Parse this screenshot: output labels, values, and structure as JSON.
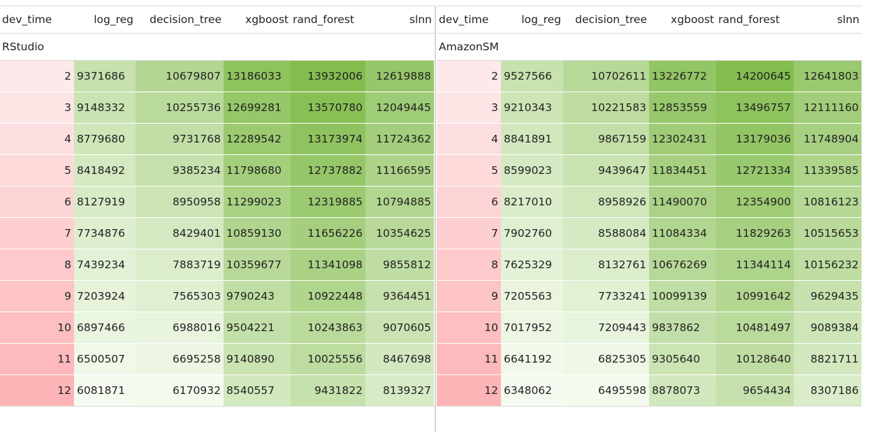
{
  "columns": [
    "dev_time",
    "log_reg",
    "decision_tree",
    "xgboost",
    "rand_forest",
    "slnn"
  ],
  "panels": [
    {
      "group": "RStudio",
      "rows": [
        [
          2,
          9371686,
          10679807,
          13186033,
          13932006,
          12619888
        ],
        [
          3,
          9148332,
          10255736,
          12699281,
          13570780,
          12049445
        ],
        [
          4,
          8779680,
          9731768,
          12289542,
          13173974,
          11724362
        ],
        [
          5,
          8418492,
          9385234,
          11798680,
          12737882,
          11166595
        ],
        [
          6,
          8127919,
          8950958,
          11299023,
          12319885,
          10794885
        ],
        [
          7,
          7734876,
          8429401,
          10859130,
          11656226,
          10354625
        ],
        [
          8,
          7439234,
          7883719,
          10359677,
          11341098,
          9855812
        ],
        [
          9,
          7203924,
          7565303,
          9790243,
          10922448,
          9364451
        ],
        [
          10,
          6897466,
          6988016,
          9504221,
          10243863,
          9070605
        ],
        [
          11,
          6500507,
          6695258,
          9140890,
          10025556,
          8467698
        ],
        [
          12,
          6081871,
          6170932,
          8540557,
          9431822,
          8139327
        ]
      ]
    },
    {
      "group": "AmazonSM",
      "rows": [
        [
          2,
          9527566,
          10702611,
          13226772,
          14200645,
          12641803
        ],
        [
          3,
          9210343,
          10221583,
          12853559,
          13496757,
          12111160
        ],
        [
          4,
          8841891,
          9867159,
          12302431,
          13179036,
          11748904
        ],
        [
          5,
          8599023,
          9439647,
          11834451,
          12721334,
          11339585
        ],
        [
          6,
          8217010,
          8958926,
          11490070,
          12354900,
          10816123
        ],
        [
          7,
          7902760,
          8588084,
          11084334,
          11829263,
          10515653
        ],
        [
          8,
          7625329,
          8132761,
          10676269,
          11344114,
          10156232
        ],
        [
          9,
          7205563,
          7733241,
          10099139,
          10991642,
          9629435
        ],
        [
          10,
          7017952,
          7209443,
          9837862,
          10481497,
          9089384
        ],
        [
          11,
          6641192,
          6825305,
          9305640,
          10128640,
          8821711
        ],
        [
          12,
          6348062,
          6495598,
          8878073,
          9654434,
          8307186
        ]
      ]
    }
  ],
  "colors": {
    "dev_time_low": "#fde9ea",
    "dev_time_high": "#fdb4b6",
    "value_low": "#f6fbf1",
    "value_high": "#84bd4f",
    "border": "#d9d9d9"
  }
}
